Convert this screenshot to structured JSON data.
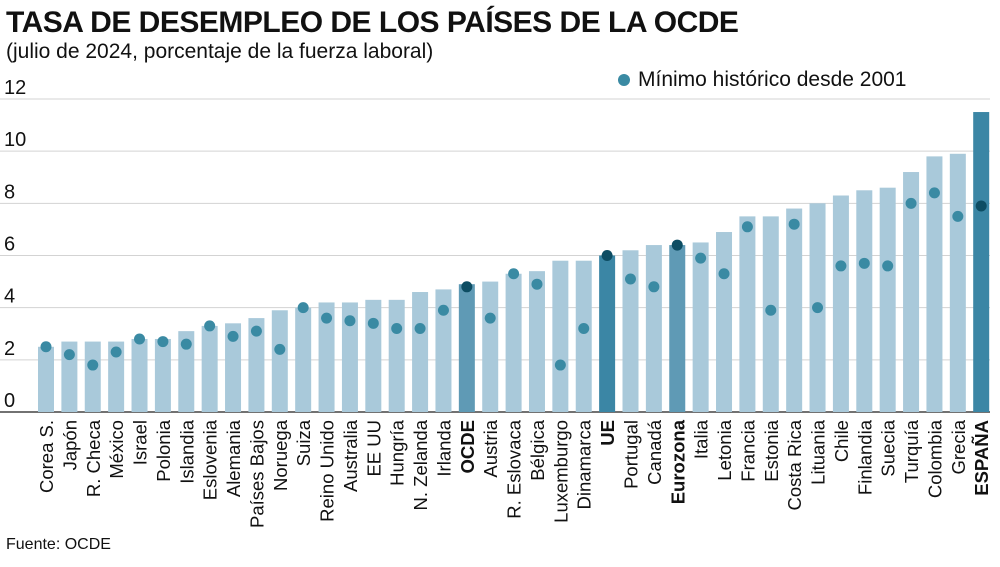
{
  "chart_data": {
    "type": "bar",
    "title": "TASA DE DESEMPLEO DE LOS PAÍSES DE LA OCDE",
    "subtitle": "(julio de 2024, porcentaje de la fuerza laboral)",
    "legend": {
      "label": "Mínimo histórico desde 2001",
      "placement": "top-right"
    },
    "source": "Fuente: OCDE",
    "ylim": [
      0,
      12
    ],
    "yticks": [
      0,
      2,
      4,
      6,
      8,
      10,
      12
    ],
    "grid": true,
    "categories": [
      "Corea S.",
      "Japón",
      "R. Checa",
      "México",
      "Israel",
      "Polonia",
      "Islandia",
      "Eslovenia",
      "Alemania",
      "Países Bajos",
      "Noruega",
      "Suiza",
      "Reino Unido",
      "Australia",
      "EE UU",
      "Hungría",
      "N. Zelanda",
      "Irlanda",
      "OCDE",
      "Austria",
      "R. Eslovaca",
      "Bélgica",
      "Luxemburgo",
      "Dinamarca",
      "UE",
      "Portugal",
      "Canadá",
      "Eurozona",
      "Italia",
      "Letonia",
      "Francia",
      "Estonia",
      "Costa Rica",
      "Lituania",
      "Chile",
      "Finlandia",
      "Suecia",
      "Turquía",
      "Colombia",
      "Grecia",
      "ESPAÑA"
    ],
    "series": [
      {
        "name": "Tasa de desempleo",
        "values": [
          2.5,
          2.7,
          2.7,
          2.7,
          2.8,
          2.8,
          3.1,
          3.3,
          3.4,
          3.6,
          3.9,
          4.0,
          4.2,
          4.2,
          4.3,
          4.3,
          4.6,
          4.7,
          4.9,
          5.0,
          5.3,
          5.4,
          5.8,
          5.8,
          6.0,
          6.2,
          6.4,
          6.4,
          6.5,
          6.9,
          7.5,
          7.5,
          7.8,
          8.0,
          8.3,
          8.5,
          8.6,
          9.2,
          9.8,
          9.9,
          11.5
        ]
      },
      {
        "name": "Mínimo histórico desde 2001",
        "values": [
          2.5,
          2.2,
          1.8,
          2.3,
          2.8,
          2.7,
          2.6,
          3.3,
          2.9,
          3.1,
          2.4,
          4.0,
          3.6,
          3.5,
          3.4,
          3.2,
          3.2,
          3.9,
          4.8,
          3.6,
          5.3,
          4.9,
          1.8,
          3.2,
          6.0,
          5.1,
          4.8,
          6.4,
          5.9,
          5.3,
          7.1,
          3.9,
          7.2,
          4.0,
          5.6,
          5.7,
          5.6,
          8.0,
          8.4,
          7.5,
          7.9
        ]
      }
    ],
    "highlighted": [
      "OCDE",
      "UE",
      "Eurozona",
      "ESPAÑA"
    ],
    "colors": {
      "bar": "#a9c9da",
      "bar_highlight_mid": "#5f9ab5",
      "bar_highlight_strong": "#3b86a5",
      "dot": "#3a8aa3",
      "dot_highlight": "#0d4d63",
      "grid": "#d3d3d3",
      "axis": "#444444"
    }
  }
}
